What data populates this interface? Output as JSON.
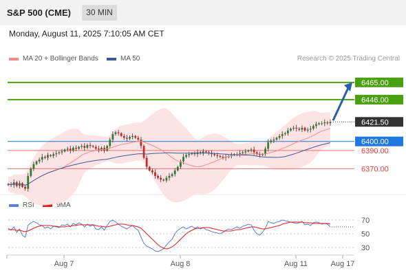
{
  "header": {
    "title": "S&P 500 (CME)",
    "interval": "30 MIN"
  },
  "timestamp": "Monday, August 11, 2025 7:10:05 AM CET",
  "legend": {
    "ma20": "MA 20 + Bollinger Bands",
    "ma50": "MA 50",
    "credit": "Research © 2025 Trading Central"
  },
  "rsi_legend": {
    "rsi": "RSI",
    "ma9": "9MA"
  },
  "colors": {
    "green": "#4aa00e",
    "blue_level": "#1f77e0",
    "red_level": "#e57373",
    "bollinger": "#fde0e0",
    "ma20": "#f28c8c",
    "ma50": "#3a5a9a",
    "arrow": "#2a5ea8",
    "rsi": "#5a7fd8",
    "ma9": "#e01b1b"
  },
  "chart_data": [
    {
      "type": "candlestick",
      "ylim": [
        6340,
        6480
      ],
      "x_ticks": [
        "Aug 7",
        "Aug 8",
        "Aug 11",
        "Aug 17"
      ],
      "levels": [
        {
          "value": 6465.0,
          "label": "6465.00",
          "style": "resistance"
        },
        {
          "value": 6446.0,
          "label": "6446.00",
          "style": "resistance"
        },
        {
          "value": 6421.5,
          "label": "6421.50",
          "style": "last"
        },
        {
          "value": 6400.0,
          "label": "6400.00",
          "style": "pivot"
        },
        {
          "value": 6390.0,
          "label": "6390.00",
          "style": "support"
        },
        {
          "value": 6370.0,
          "label": "6370.00",
          "style": "support"
        }
      ],
      "arrow": {
        "from": 6421.5,
        "to": 6465.0
      },
      "series": [
        {
          "name": "MA 20 + Bollinger Bands"
        },
        {
          "name": "MA 50"
        }
      ],
      "close": [
        6353,
        6352,
        6355,
        6351,
        6354,
        6350,
        6348,
        6362,
        6370,
        6375,
        6378,
        6380,
        6383,
        6382,
        6385,
        6384,
        6386,
        6387,
        6388,
        6389,
        6391,
        6392,
        6390,
        6393,
        6392,
        6394,
        6395,
        6393,
        6396,
        6395,
        6394,
        6392,
        6391,
        6393,
        6390,
        6395,
        6402,
        6408,
        6410,
        6409,
        6406,
        6404,
        6403,
        6405,
        6406,
        6404,
        6402,
        6395,
        6382,
        6372,
        6368,
        6366,
        6362,
        6360,
        6358,
        6357,
        6360,
        6362,
        6364,
        6368,
        6372,
        6378,
        6383,
        6385,
        6386,
        6387,
        6386,
        6388,
        6387,
        6389,
        6388,
        6387,
        6386,
        6385,
        6384,
        6383,
        6382,
        6383,
        6384,
        6385,
        6386,
        6386,
        6387,
        6388,
        6389,
        6390,
        6391,
        6388,
        6386,
        6385,
        6386,
        6392,
        6399,
        6401,
        6402,
        6404,
        6406,
        6408,
        6409,
        6412,
        6414,
        6415,
        6414,
        6413,
        6415,
        6412,
        6413,
        6414,
        6417,
        6419,
        6420,
        6420,
        6421,
        6420,
        6421.5
      ]
    },
    {
      "type": "line",
      "ylim": [
        20,
        80
      ],
      "y_ticks": [
        70,
        50,
        30
      ],
      "series": [
        {
          "name": "RSI",
          "values": [
            58,
            55,
            60,
            52,
            57,
            48,
            45,
            62,
            66,
            68,
            66,
            63,
            62,
            58,
            60,
            57,
            61,
            60,
            59,
            63,
            62,
            64,
            60,
            65,
            63,
            66,
            64,
            60,
            64,
            61,
            63,
            57,
            56,
            60,
            55,
            62,
            68,
            70,
            67,
            64,
            61,
            59,
            57,
            60,
            62,
            58,
            55,
            45,
            36,
            32,
            30,
            28,
            25,
            24,
            26,
            28,
            34,
            38,
            42,
            50,
            55,
            58,
            60,
            57,
            59,
            61,
            58,
            60,
            57,
            59,
            56,
            55,
            53,
            52,
            51,
            50,
            52,
            55,
            57,
            56,
            58,
            60,
            58,
            61,
            62,
            64,
            63,
            55,
            50,
            48,
            52,
            58,
            68,
            66,
            65,
            67,
            68,
            70,
            69,
            68,
            67,
            66,
            65,
            66,
            68,
            63,
            64,
            62,
            66,
            67,
            66,
            64,
            65,
            64,
            60
          ]
        },
        {
          "name": "9MA",
          "values": [
            56,
            56,
            56,
            55,
            55,
            54,
            53,
            54,
            56,
            58,
            60,
            61,
            62,
            62,
            62,
            62,
            61,
            61,
            60,
            60,
            60,
            61,
            61,
            62,
            62,
            63,
            63,
            63,
            63,
            63,
            63,
            62,
            61,
            61,
            60,
            60,
            61,
            62,
            63,
            64,
            64,
            64,
            63,
            62,
            62,
            61,
            60,
            58,
            54,
            50,
            46,
            42,
            38,
            34,
            31,
            29,
            28,
            29,
            31,
            34,
            38,
            42,
            46,
            50,
            53,
            55,
            57,
            58,
            58,
            59,
            59,
            59,
            58,
            57,
            56,
            55,
            54,
            54,
            54,
            54,
            55,
            56,
            56,
            57,
            58,
            59,
            60,
            60,
            59,
            58,
            57,
            57,
            58,
            59,
            60,
            61,
            62,
            64,
            65,
            66,
            67,
            67,
            67,
            67,
            67,
            66,
            66,
            66,
            65,
            65,
            65,
            65,
            65,
            65,
            64
          ]
        }
      ]
    }
  ]
}
